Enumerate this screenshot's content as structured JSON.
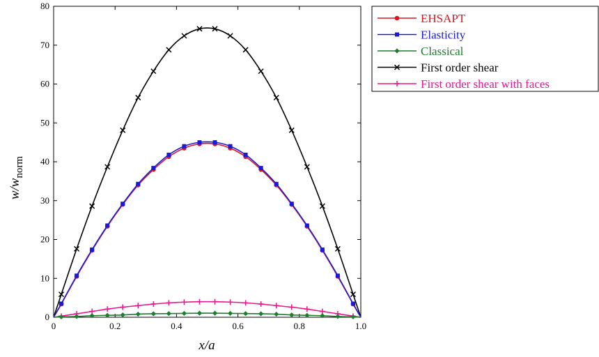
{
  "chart_data": {
    "type": "line",
    "xlabel": "x/a",
    "ylabel_main": "w/w",
    "ylabel_sub": "norm",
    "xlim": [
      0,
      1.0
    ],
    "ylim": [
      0,
      80
    ],
    "x_ticks": [
      "0",
      "0.2",
      "0.4",
      "0.6",
      "0.8",
      "1.0"
    ],
    "y_ticks": [
      "0",
      "10",
      "20",
      "30",
      "40",
      "50",
      "60",
      "70",
      "80"
    ],
    "grid": false,
    "legend_position": "outside-top-right",
    "series": [
      {
        "name": "EHSAPT",
        "color": "#e0141e",
        "marker": "circle",
        "x": [
          0,
          0.025,
          0.075,
          0.125,
          0.175,
          0.225,
          0.275,
          0.325,
          0.375,
          0.425,
          0.475,
          0.525,
          0.575,
          0.625,
          0.675,
          0.725,
          0.775,
          0.825,
          0.875,
          0.925,
          0.975,
          1.0
        ],
        "y": [
          0,
          3.4,
          10.5,
          17.2,
          23.4,
          29.0,
          34.0,
          38.0,
          41.3,
          43.5,
          44.6,
          44.6,
          43.5,
          41.3,
          38.0,
          34.0,
          29.0,
          23.4,
          17.2,
          10.5,
          3.4,
          0
        ]
      },
      {
        "name": "Elasticity",
        "color": "#1a1ad6",
        "marker": "square",
        "x": [
          0,
          0.025,
          0.075,
          0.125,
          0.175,
          0.225,
          0.275,
          0.325,
          0.375,
          0.425,
          0.475,
          0.525,
          0.575,
          0.625,
          0.675,
          0.725,
          0.775,
          0.825,
          0.875,
          0.925,
          0.975,
          1.0
        ],
        "y": [
          0,
          3.5,
          10.7,
          17.4,
          23.6,
          29.2,
          34.3,
          38.4,
          41.8,
          44.0,
          45.0,
          45.0,
          44.0,
          41.8,
          38.4,
          34.3,
          29.2,
          23.6,
          17.4,
          10.7,
          3.5,
          0
        ]
      },
      {
        "name": "Classical",
        "color": "#1e7d2e",
        "marker": "diamond",
        "x": [
          0,
          0.025,
          0.075,
          0.125,
          0.175,
          0.225,
          0.275,
          0.325,
          0.375,
          0.425,
          0.475,
          0.525,
          0.575,
          0.625,
          0.675,
          0.725,
          0.775,
          0.825,
          0.875,
          0.925,
          0.975,
          1.0
        ],
        "y": [
          0,
          0.1,
          0.2,
          0.4,
          0.5,
          0.6,
          0.8,
          0.9,
          0.95,
          1.0,
          1.05,
          1.05,
          1.0,
          0.95,
          0.9,
          0.8,
          0.6,
          0.5,
          0.4,
          0.2,
          0.1,
          0
        ]
      },
      {
        "name": "First order shear",
        "color": "#000000",
        "marker": "x",
        "x": [
          0,
          0.025,
          0.075,
          0.125,
          0.175,
          0.225,
          0.275,
          0.325,
          0.375,
          0.425,
          0.475,
          0.525,
          0.575,
          0.625,
          0.675,
          0.725,
          0.775,
          0.825,
          0.875,
          0.925,
          0.975,
          1.0
        ],
        "y": [
          0,
          5.9,
          17.6,
          28.6,
          38.7,
          48.1,
          56.5,
          63.3,
          68.8,
          72.4,
          74.2,
          74.2,
          72.4,
          68.8,
          63.3,
          56.5,
          48.1,
          38.7,
          28.6,
          17.6,
          5.9,
          0
        ]
      },
      {
        "name": "First order shear with faces",
        "color": "#e8168c",
        "marker": "plus",
        "x": [
          0,
          0.025,
          0.075,
          0.125,
          0.175,
          0.225,
          0.275,
          0.325,
          0.375,
          0.425,
          0.475,
          0.525,
          0.575,
          0.625,
          0.675,
          0.725,
          0.775,
          0.825,
          0.875,
          0.925,
          0.975,
          1.0
        ],
        "y": [
          0,
          0.3,
          0.9,
          1.5,
          2.1,
          2.6,
          3.0,
          3.4,
          3.7,
          3.9,
          4.0,
          4.0,
          3.9,
          3.7,
          3.4,
          3.0,
          2.6,
          2.1,
          1.5,
          0.9,
          0.3,
          0
        ]
      }
    ]
  }
}
